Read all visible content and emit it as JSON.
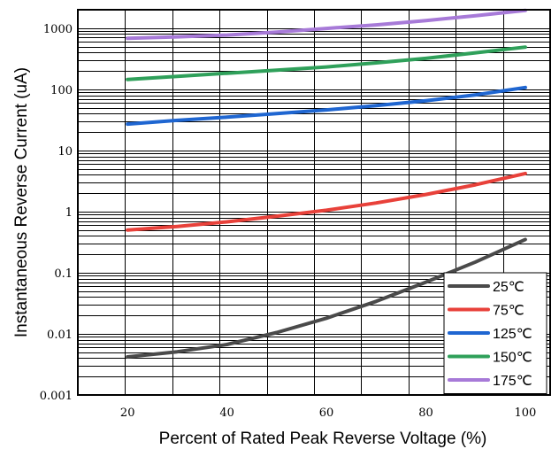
{
  "chart_data": {
    "type": "line",
    "title": "",
    "xlabel": "Percent of Rated Peak Reverse Voltage (%)",
    "ylabel": "Instantaneous Reverse Current (uA)",
    "xlim": [
      10,
      105
    ],
    "ylim": [
      0.001,
      2000
    ],
    "y_scale": "log",
    "grid": true,
    "legend_position": "bottom-right",
    "x_ticks": [
      20,
      40,
      60,
      80,
      100
    ],
    "x_tick_labels": [
      "20",
      "40",
      "60",
      "80",
      "100"
    ],
    "y_ticks": [
      0.001,
      0.01,
      0.1,
      1,
      10,
      100,
      1000
    ],
    "y_tick_labels": [
      "0.001",
      "0.01",
      "0.1",
      "1",
      "10",
      "100",
      "1000"
    ],
    "x": [
      20,
      30,
      40,
      50,
      60,
      70,
      80,
      90,
      100
    ],
    "series": [
      {
        "name": "25℃",
        "color": "#4a4a4a",
        "values": [
          0.0042,
          0.0051,
          0.0067,
          0.0105,
          0.018,
          0.034,
          0.07,
          0.15,
          0.35
        ]
      },
      {
        "name": "75℃",
        "color": "#e8413a",
        "values": [
          0.5,
          0.57,
          0.68,
          0.84,
          1.05,
          1.38,
          1.9,
          2.75,
          4.2
        ]
      },
      {
        "name": "125℃",
        "color": "#1f66d1",
        "values": [
          27,
          31,
          35,
          40,
          46,
          54,
          65,
          81,
          107
        ]
      },
      {
        "name": "150℃",
        "color": "#2fa05a",
        "values": [
          145,
          163,
          183,
          205,
          232,
          270,
          320,
          395,
          490
        ]
      },
      {
        "name": "175℃",
        "color": "#a77ad8",
        "values": [
          680,
          720,
          770,
          860,
          990,
          1130,
          1330,
          1600,
          1950
        ]
      }
    ]
  }
}
